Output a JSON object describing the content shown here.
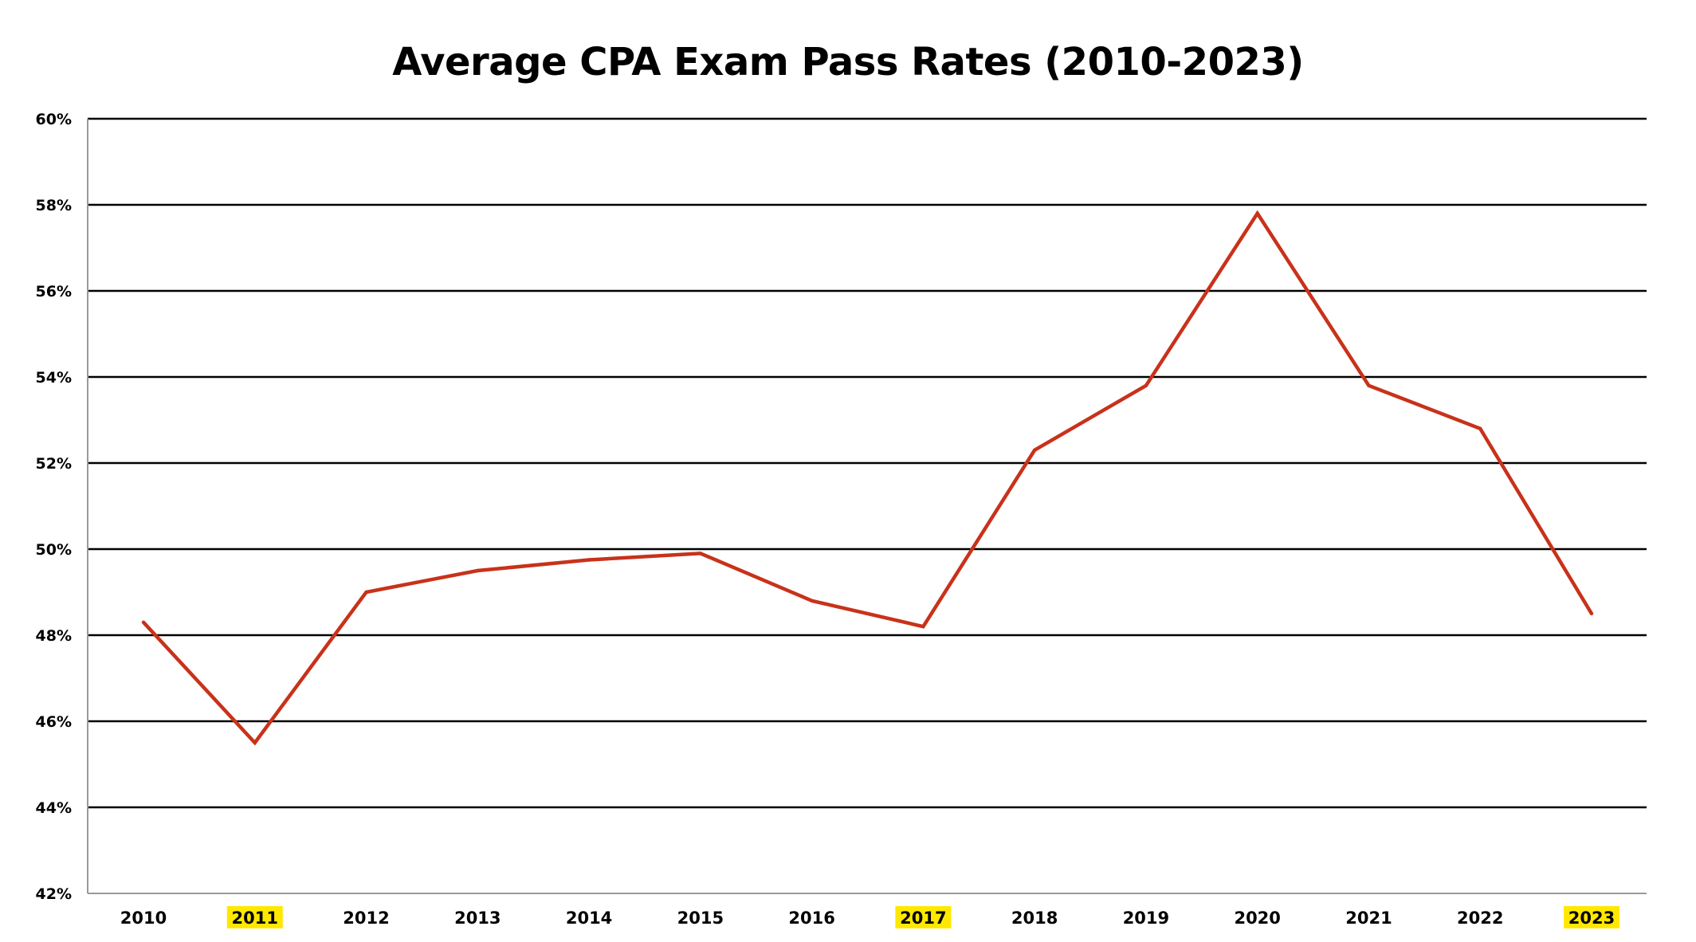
{
  "chart_data": {
    "type": "line",
    "title": "Average CPA Exam Pass Rates (2010-2023)",
    "xlabel": "",
    "ylabel": "",
    "x": [
      "2010",
      "2011",
      "2012",
      "2013",
      "2014",
      "2015",
      "2016",
      "2017",
      "2018",
      "2019",
      "2020",
      "2021",
      "2022",
      "2023"
    ],
    "highlighted_x": [
      "2011",
      "2017",
      "2023"
    ],
    "series": [
      {
        "values": [
          48.3,
          45.5,
          49.0,
          49.5,
          49.75,
          49.9,
          48.8,
          48.2,
          52.3,
          53.8,
          57.8,
          53.8,
          52.8,
          48.5
        ]
      }
    ],
    "ylim": [
      42,
      60
    ],
    "y_ticks": [
      42,
      44,
      46,
      48,
      50,
      52,
      54,
      56,
      58,
      60
    ],
    "y_tick_labels": [
      "42%",
      "44%",
      "46%",
      "48%",
      "50%",
      "52%",
      "54%",
      "56%",
      "58%",
      "60%"
    ],
    "grid": true,
    "legend": "none",
    "colors": {
      "line": "#c8321a",
      "grid": "#000000",
      "highlight": "#ffe800"
    }
  }
}
